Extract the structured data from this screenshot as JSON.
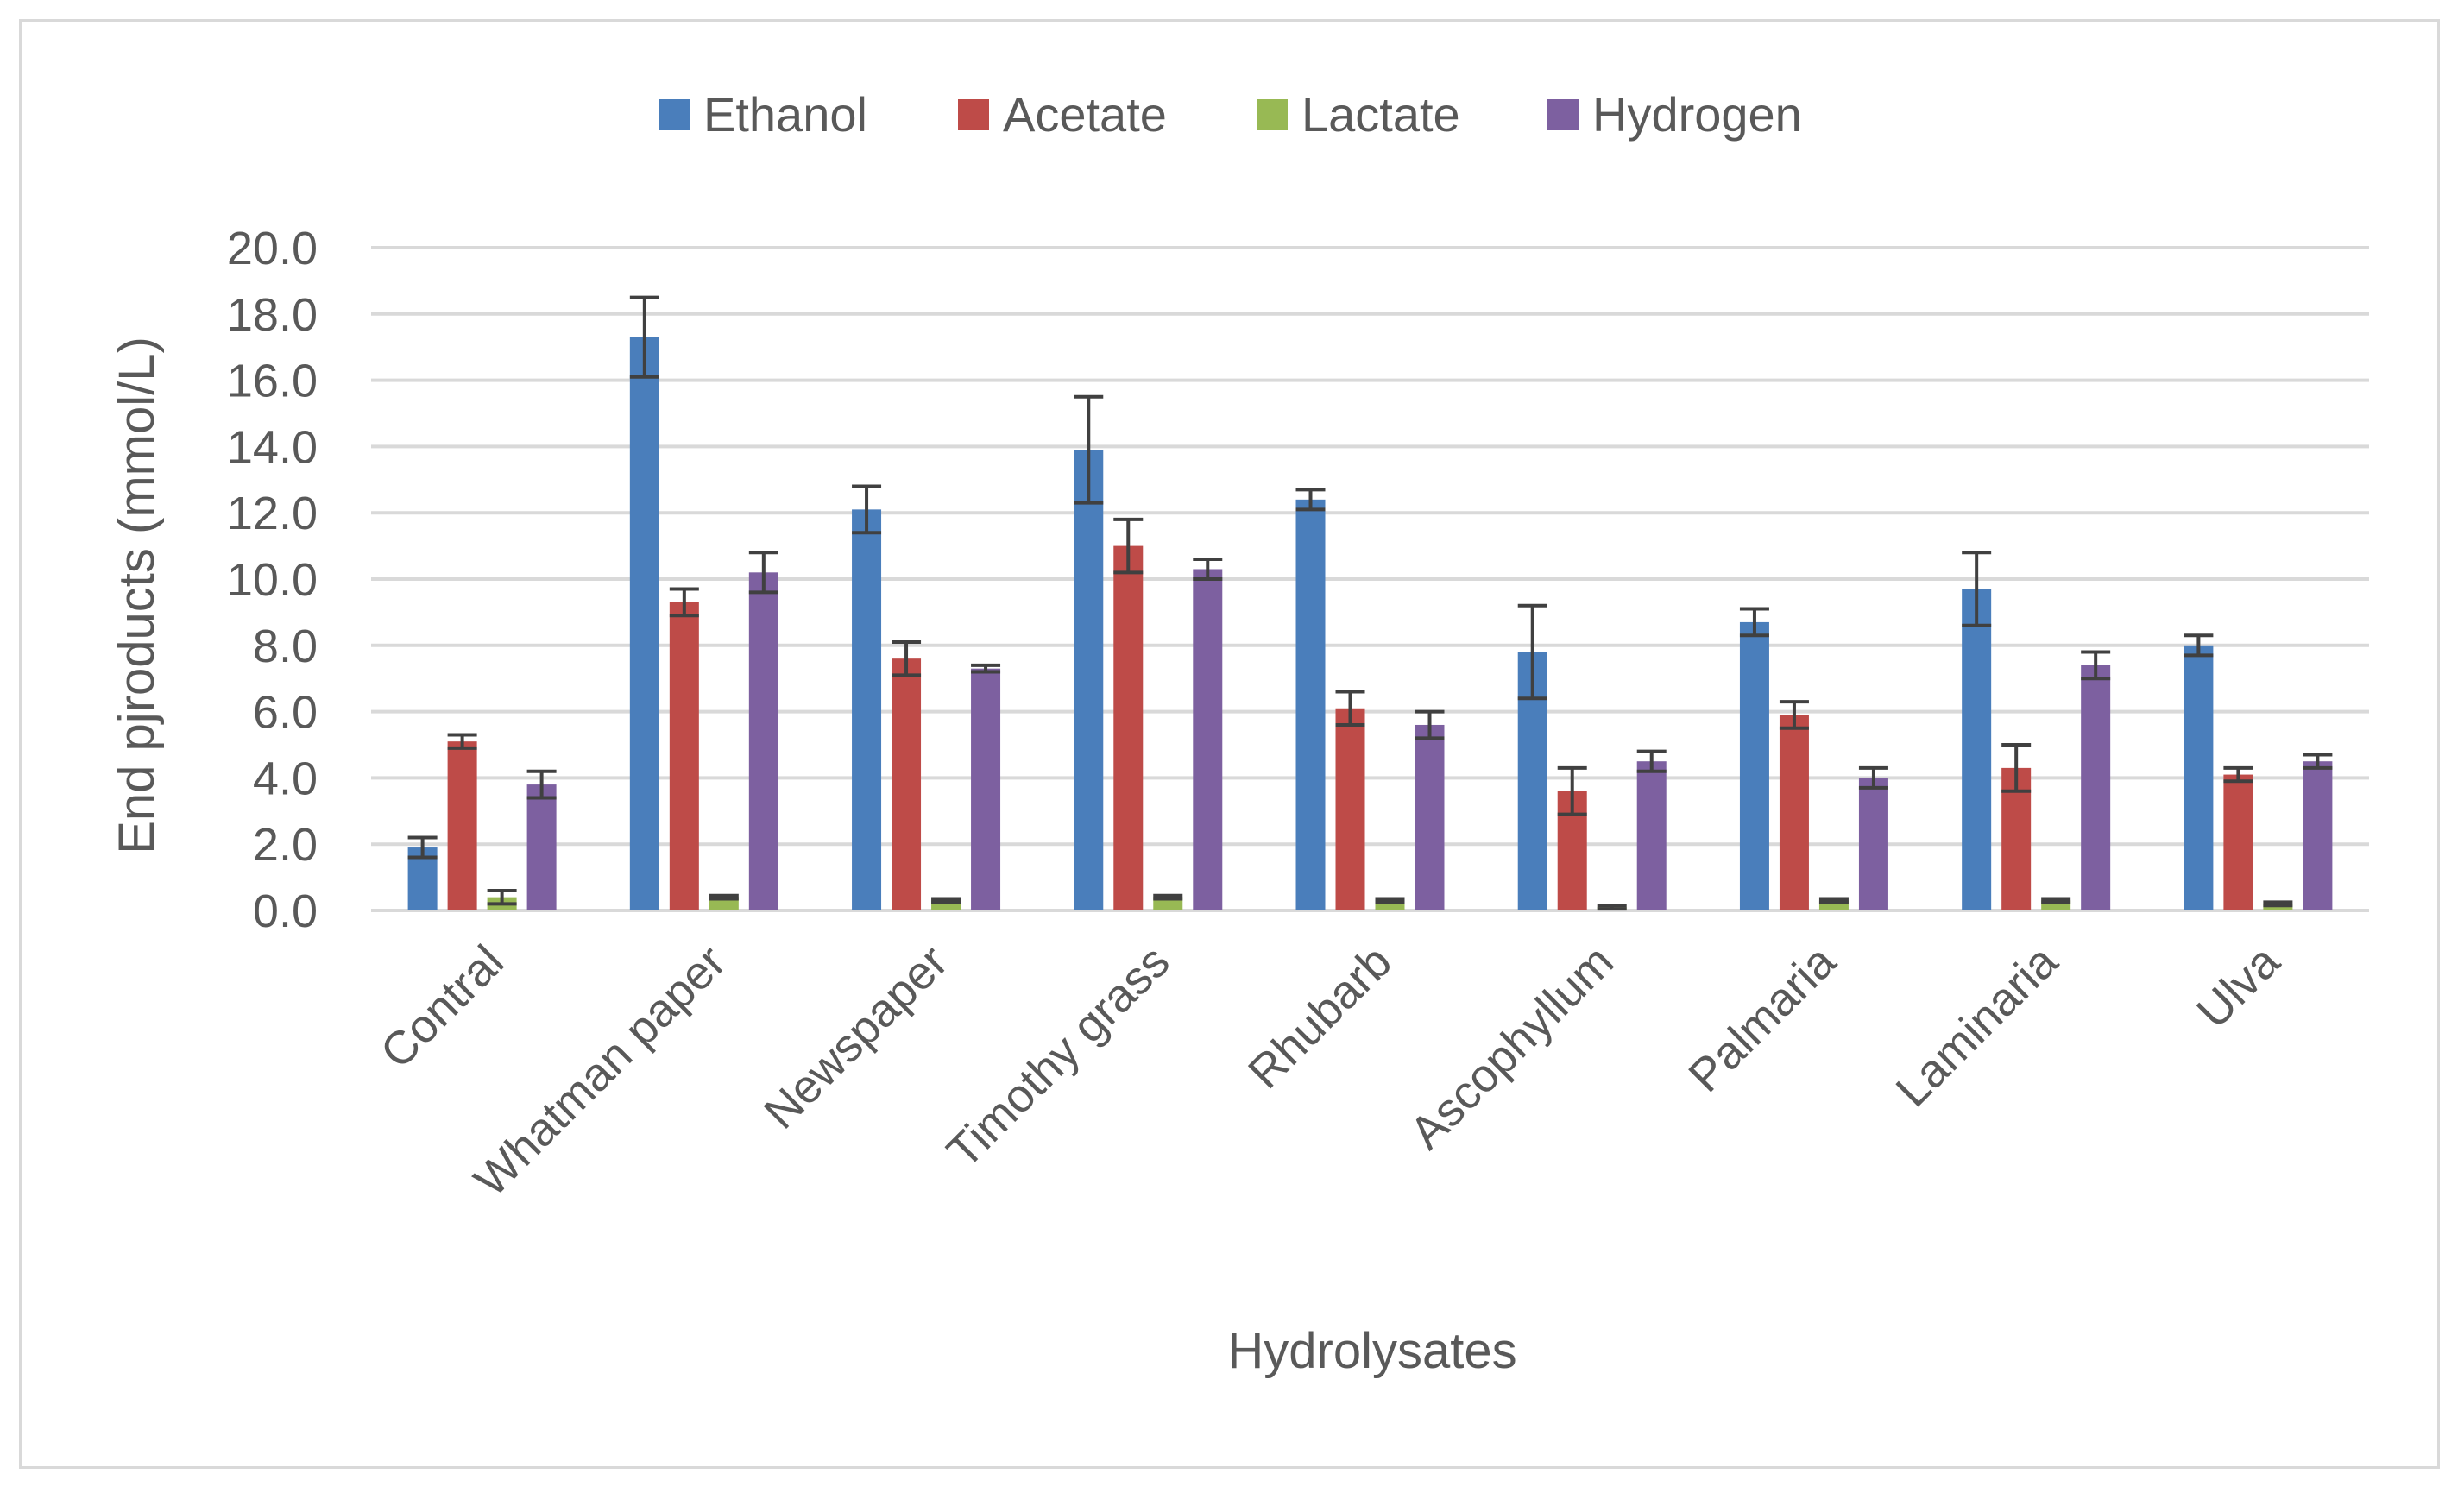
{
  "chart_data": {
    "type": "bar",
    "title": "",
    "xlabel": "Hydrolysates",
    "ylabel": "End pjroducts (mmol/L)",
    "ylim": [
      0,
      20
    ],
    "ytick_step": 2,
    "ytick_format_decimals": 1,
    "grid": true,
    "legend_position": "top",
    "categories": [
      "Contral",
      "Whatman paper",
      "Newspaper",
      "Timothy grass",
      "Rhubarb",
      "Ascophyllum",
      "Palmaria",
      "Laminaria",
      "Ulva"
    ],
    "series": [
      {
        "name": "Ethanol",
        "color": "#4a7ebb",
        "values": [
          1.9,
          17.3,
          12.1,
          13.9,
          12.4,
          7.8,
          8.7,
          9.7,
          8.0
        ],
        "errors": [
          0.3,
          1.2,
          0.7,
          1.6,
          0.3,
          1.4,
          0.4,
          1.1,
          0.3
        ]
      },
      {
        "name": "Acetate",
        "color": "#be4b48",
        "values": [
          5.1,
          9.3,
          7.6,
          11.0,
          6.1,
          3.6,
          5.9,
          4.3,
          4.1
        ],
        "errors": [
          0.2,
          0.4,
          0.5,
          0.8,
          0.5,
          0.7,
          0.4,
          0.7,
          0.2
        ]
      },
      {
        "name": "Lactate",
        "color": "#98b954",
        "values": [
          0.4,
          0.4,
          0.3,
          0.4,
          0.3,
          0.1,
          0.3,
          0.3,
          0.2
        ],
        "errors": [
          0.2,
          0.05,
          0.05,
          0.05,
          0.05,
          0.05,
          0.05,
          0.05,
          0.05
        ]
      },
      {
        "name": "Hydrogen",
        "color": "#7d60a0",
        "values": [
          3.8,
          10.2,
          7.3,
          10.3,
          5.6,
          4.5,
          4.0,
          7.4,
          4.5
        ],
        "errors": [
          0.4,
          0.6,
          0.1,
          0.3,
          0.4,
          0.3,
          0.3,
          0.4,
          0.2
        ]
      }
    ],
    "error_bar_color": "#404040",
    "grid_color": "#d9d9d9"
  }
}
